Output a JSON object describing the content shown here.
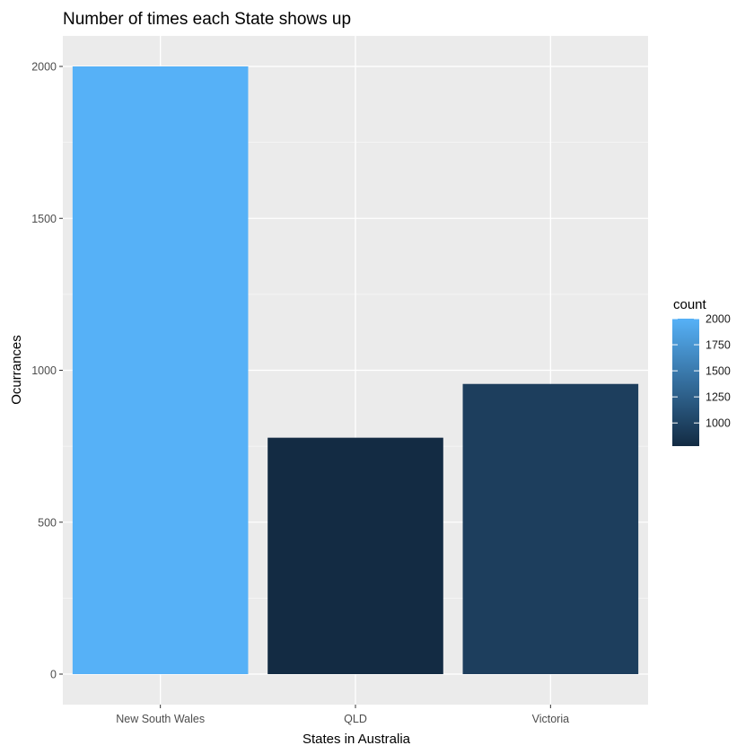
{
  "chart_data": {
    "type": "bar",
    "title": "Number of times each State shows up",
    "xlabel": "States in Australia",
    "ylabel": "Ocurrances",
    "categories": [
      "New South Wales",
      "QLD",
      "Victoria"
    ],
    "values": [
      2000,
      778,
      955
    ],
    "ylim": [
      -60,
      2100
    ],
    "yticks": [
      0,
      500,
      1000,
      1500,
      2000
    ],
    "grid": true,
    "panel_background": "#ebebeb",
    "legend": {
      "title": "count",
      "placement": "right",
      "labels": [
        "2000",
        "1750",
        "1500",
        "1250",
        "1000"
      ],
      "breaks": [
        2000,
        1750,
        1500,
        1250,
        1000
      ],
      "range": [
        778,
        2000
      ],
      "color_low": "#132b43",
      "color_high": "#56b1f7"
    }
  }
}
